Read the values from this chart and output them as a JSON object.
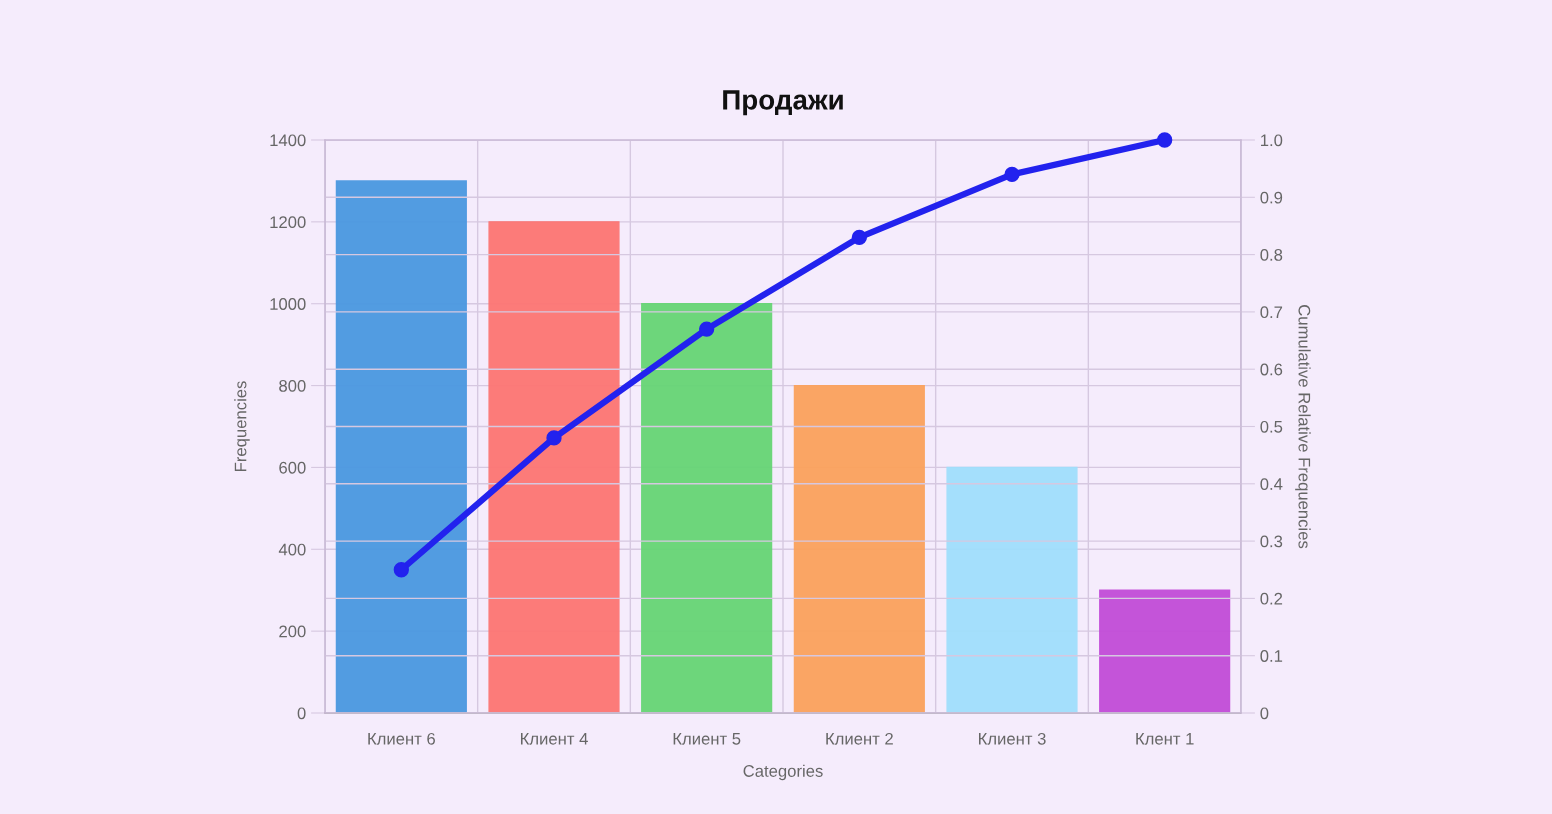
{
  "chart_data": {
    "type": "bar",
    "title": "Продажи",
    "xlabel": "Categories",
    "ylabel": "Frequencies",
    "y2label": "Cumulative Relative Frequencies",
    "categories": [
      "Клиент 6",
      "Клиент 4",
      "Клиент 5",
      "Клиент 2",
      "Клиент 3",
      "Клент 1"
    ],
    "series": [
      {
        "colors": [
          "#4a98e0",
          "#fd7573",
          "#66d575",
          "#fba25c",
          "#a0dffc",
          "#c24cd8"
        ],
        "values": [
          1300,
          1200,
          1000,
          800,
          600,
          300
        ]
      },
      {
        "type": "line",
        "axis": "y2",
        "color": "#2222ee",
        "values": [
          0.25,
          0.48,
          0.67,
          0.83,
          0.94,
          1.0
        ]
      }
    ],
    "ylim": [
      0,
      1400
    ],
    "yticks": [
      0,
      200,
      400,
      600,
      800,
      1000,
      1200,
      1400
    ],
    "y2lim": [
      0,
      1
    ],
    "y2ticks": [
      0,
      0.1,
      0.2,
      0.3,
      0.4,
      0.5,
      0.6,
      0.7,
      0.8,
      0.9,
      {
        "value": 1,
        "label": "1.0"
      }
    ],
    "grid": true,
    "marker": "circle",
    "line_style": "solid"
  }
}
